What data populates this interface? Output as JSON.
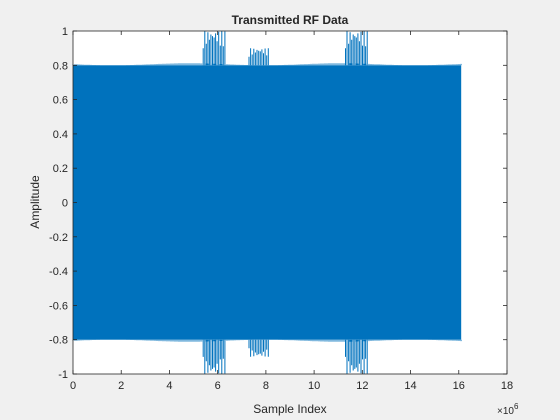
{
  "chart_data": {
    "type": "line",
    "title": "Transmitted RF Data",
    "xlabel": "Sample Index",
    "ylabel": "Amplitude",
    "xlim": [
      0,
      18
    ],
    "ylim": [
      -1,
      1
    ],
    "x_scale_label": "×10",
    "x_scale_exponent": "6",
    "x_ticks": [
      "0",
      "2",
      "4",
      "6",
      "8",
      "10",
      "12",
      "14",
      "16",
      "18"
    ],
    "y_ticks": [
      "-1",
      "-0.8",
      "-0.6",
      "-0.4",
      "-0.2",
      "0",
      "0.2",
      "0.4",
      "0.6",
      "0.8",
      "1"
    ],
    "series": [
      {
        "name": "Transmitted RF Data",
        "color": "#0072bd",
        "envelope": {
          "x_start": 0.0,
          "x_end": 16.1,
          "amplitude": 0.8,
          "bursts": [
            {
              "x_start": 5.4,
              "x_end": 6.3,
              "amplitude": 1.0
            },
            {
              "x_start": 7.3,
              "x_end": 8.1,
              "amplitude": 0.9
            },
            {
              "x_start": 11.3,
              "x_end": 12.2,
              "amplitude": 1.0
            }
          ]
        }
      }
    ]
  },
  "colors": {
    "figure_bg": "#f0f0f0",
    "axes_bg": "#ffffff",
    "axis": "#262626",
    "series": "#0072bd"
  }
}
